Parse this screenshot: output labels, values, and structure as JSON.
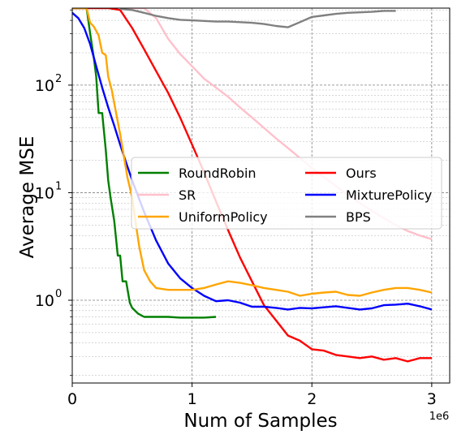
{
  "chart_data": {
    "type": "line",
    "title": "",
    "xlabel": "Num of Samples",
    "ylabel": "Average MSE",
    "x_offset_label": "1e6",
    "xscale": "linear",
    "yscale": "log",
    "xlim": [
      0,
      3150000
    ],
    "ylim": [
      0.17,
      520
    ],
    "x_ticks": [
      0,
      1000000,
      2000000,
      3000000
    ],
    "x_tick_labels": [
      "0",
      "1",
      "2",
      "3"
    ],
    "y_ticks": [
      1,
      10,
      100
    ],
    "y_tick_labels": [
      "10",
      "10",
      "10"
    ],
    "y_tick_exponents": [
      "0",
      "1",
      "2"
    ],
    "grid": true,
    "legend_position": "center-right",
    "series": [
      {
        "name": "RoundRobin",
        "color": "#008000",
        "x": [
          0,
          60000,
          120000,
          150000,
          180000,
          200000,
          220000,
          250000,
          280000,
          300000,
          320000,
          350000,
          380000,
          400000,
          420000,
          450000,
          480000,
          500000,
          550000,
          600000,
          700000,
          800000,
          900000,
          1000000,
          1100000,
          1200000
        ],
        "y": [
          520,
          520,
          520,
          300,
          180,
          120,
          55,
          55,
          25,
          13,
          9,
          5.5,
          2.6,
          2.6,
          1.5,
          1.5,
          0.95,
          0.85,
          0.75,
          0.7,
          0.7,
          0.7,
          0.69,
          0.69,
          0.69,
          0.7
        ]
      },
      {
        "name": "Ours",
        "color": "#ff0000",
        "x": [
          0,
          100000,
          200000,
          300000,
          400000,
          500000,
          600000,
          700000,
          800000,
          900000,
          1000000,
          1100000,
          1200000,
          1300000,
          1400000,
          1500000,
          1600000,
          1700000,
          1800000,
          1900000,
          2000000,
          2100000,
          2200000,
          2300000,
          2400000,
          2500000,
          2600000,
          2700000,
          2800000,
          2900000,
          3000000
        ],
        "y": [
          520,
          520,
          520,
          520,
          500,
          340,
          215,
          135,
          85,
          50,
          28,
          15.5,
          8.3,
          4.5,
          2.5,
          1.5,
          0.9,
          0.65,
          0.47,
          0.42,
          0.35,
          0.34,
          0.31,
          0.3,
          0.29,
          0.3,
          0.28,
          0.29,
          0.27,
          0.29,
          0.29
        ]
      },
      {
        "name": "SR",
        "color": "#ffc0cb",
        "x": [
          400000,
          600000,
          700000,
          800000,
          900000,
          1000000,
          1100000,
          1200000,
          1300000,
          1400000,
          1500000,
          1600000,
          1700000,
          1800000,
          1900000,
          2000000,
          2100000,
          2200000,
          2300000,
          2400000,
          2500000,
          2600000,
          2700000,
          2800000,
          2900000,
          3000000
        ],
        "y": [
          520,
          520,
          420,
          270,
          195,
          150,
          115,
          95,
          78,
          62,
          50,
          40,
          32,
          26,
          21,
          17,
          14,
          11.5,
          9.5,
          8,
          6.8,
          5.8,
          5,
          4.4,
          4,
          3.7
        ]
      },
      {
        "name": "MixturePolicy",
        "color": "#0000ff",
        "x": [
          0,
          50000,
          100000,
          150000,
          200000,
          250000,
          300000,
          350000,
          400000,
          450000,
          500000,
          600000,
          700000,
          800000,
          900000,
          1000000,
          1100000,
          1200000,
          1300000,
          1400000,
          1500000,
          1600000,
          1700000,
          1800000,
          1900000,
          2000000,
          2100000,
          2200000,
          2300000,
          2400000,
          2500000,
          2600000,
          2700000,
          2800000,
          2900000,
          3000000
        ],
        "y": [
          470,
          420,
          340,
          240,
          150,
          95,
          62,
          42,
          28,
          19,
          13,
          6.6,
          3.6,
          2.2,
          1.6,
          1.3,
          1.1,
          0.98,
          1.0,
          0.95,
          0.87,
          0.87,
          0.85,
          0.82,
          0.85,
          0.84,
          0.86,
          0.88,
          0.85,
          0.82,
          0.84,
          0.9,
          0.91,
          0.93,
          0.88,
          0.82
        ]
      },
      {
        "name": "UniformPolicy",
        "color": "#ffa500",
        "x": [
          0,
          80000,
          120000,
          150000,
          180000,
          220000,
          250000,
          280000,
          300000,
          330000,
          360000,
          400000,
          430000,
          460000,
          500000,
          530000,
          560000,
          600000,
          650000,
          700000,
          800000,
          900000,
          1000000,
          1100000,
          1200000,
          1300000,
          1400000,
          1500000,
          1600000,
          1700000,
          1800000,
          1900000,
          2000000,
          2100000,
          2200000,
          2300000,
          2400000,
          2500000,
          2600000,
          2700000,
          2800000,
          2900000,
          3000000
        ],
        "y": [
          520,
          520,
          520,
          380,
          350,
          290,
          200,
          190,
          120,
          90,
          60,
          35,
          22,
          14,
          9,
          5.2,
          3.1,
          1.9,
          1.5,
          1.3,
          1.25,
          1.25,
          1.25,
          1.3,
          1.4,
          1.5,
          1.45,
          1.38,
          1.3,
          1.25,
          1.2,
          1.1,
          1.15,
          1.18,
          1.2,
          1.12,
          1.1,
          1.18,
          1.25,
          1.3,
          1.3,
          1.25,
          1.18
        ]
      },
      {
        "name": "BPS",
        "color": "#808080",
        "x": [
          400000,
          500000,
          600000,
          700000,
          800000,
          900000,
          1000000,
          1100000,
          1200000,
          1300000,
          1400000,
          1500000,
          1600000,
          1700000,
          1800000,
          1900000,
          2000000,
          2100000,
          2200000,
          2300000,
          2400000,
          2500000,
          2600000,
          2700000
        ],
        "y": [
          510,
          500,
          470,
          440,
          420,
          405,
          400,
          395,
          390,
          390,
          385,
          380,
          370,
          355,
          345,
          385,
          430,
          445,
          460,
          470,
          475,
          480,
          490,
          490
        ]
      }
    ]
  }
}
